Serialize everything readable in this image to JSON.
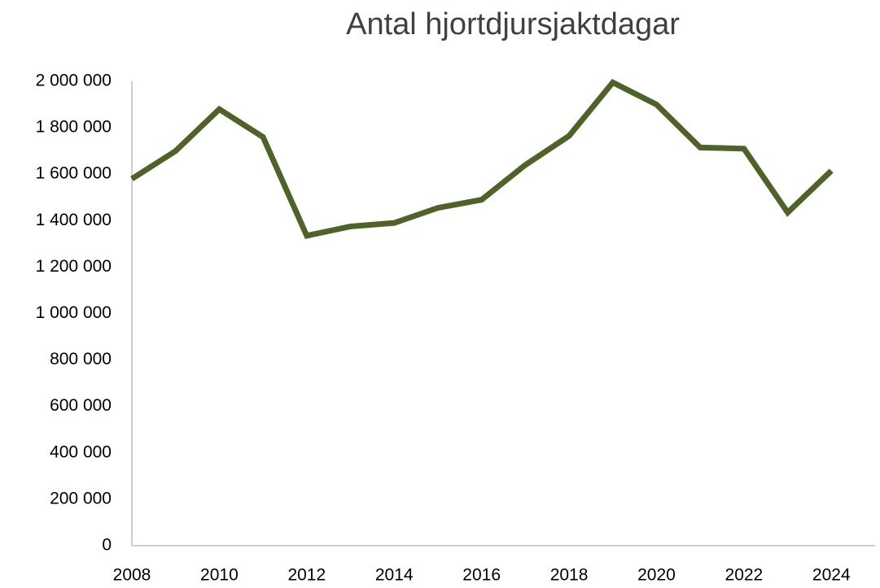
{
  "chart_data": {
    "type": "line",
    "title": "Antal hjortdjursjaktdagar",
    "x": [
      2008,
      2009,
      2010,
      2011,
      2012,
      2013,
      2014,
      2015,
      2016,
      2017,
      2018,
      2019,
      2020,
      2021,
      2022,
      2023,
      2024
    ],
    "series": [
      {
        "name": "Antal hjortdjursjaktdagar",
        "color": "#4f6228",
        "values": [
          1580000,
          1700000,
          1880000,
          1760000,
          1335000,
          1375000,
          1390000,
          1455000,
          1490000,
          1640000,
          1765000,
          1995000,
          1900000,
          1715000,
          1710000,
          1435000,
          1615000
        ]
      }
    ],
    "xlim": [
      2008,
      2025
    ],
    "xticks": [
      2008,
      2010,
      2012,
      2014,
      2016,
      2018,
      2020,
      2022,
      2024
    ],
    "ylim": [
      0,
      2000000
    ],
    "yticks": [
      0,
      {
        "value": 200000,
        "label": "200 000"
      },
      {
        "value": 400000,
        "label": "400 000"
      },
      {
        "value": 600000,
        "label": "600 000"
      },
      {
        "value": 800000,
        "label": "800 000"
      },
      {
        "value": 1000000,
        "label": "1 000 000"
      },
      {
        "value": 1200000,
        "label": "1 200 000"
      },
      {
        "value": 1400000,
        "label": "1 400 000"
      },
      {
        "value": 1600000,
        "label": "1 600 000"
      },
      {
        "value": 1800000,
        "label": "1 800 000"
      },
      {
        "value": 2000000,
        "label": "2 000 000"
      }
    ],
    "grid": false
  }
}
